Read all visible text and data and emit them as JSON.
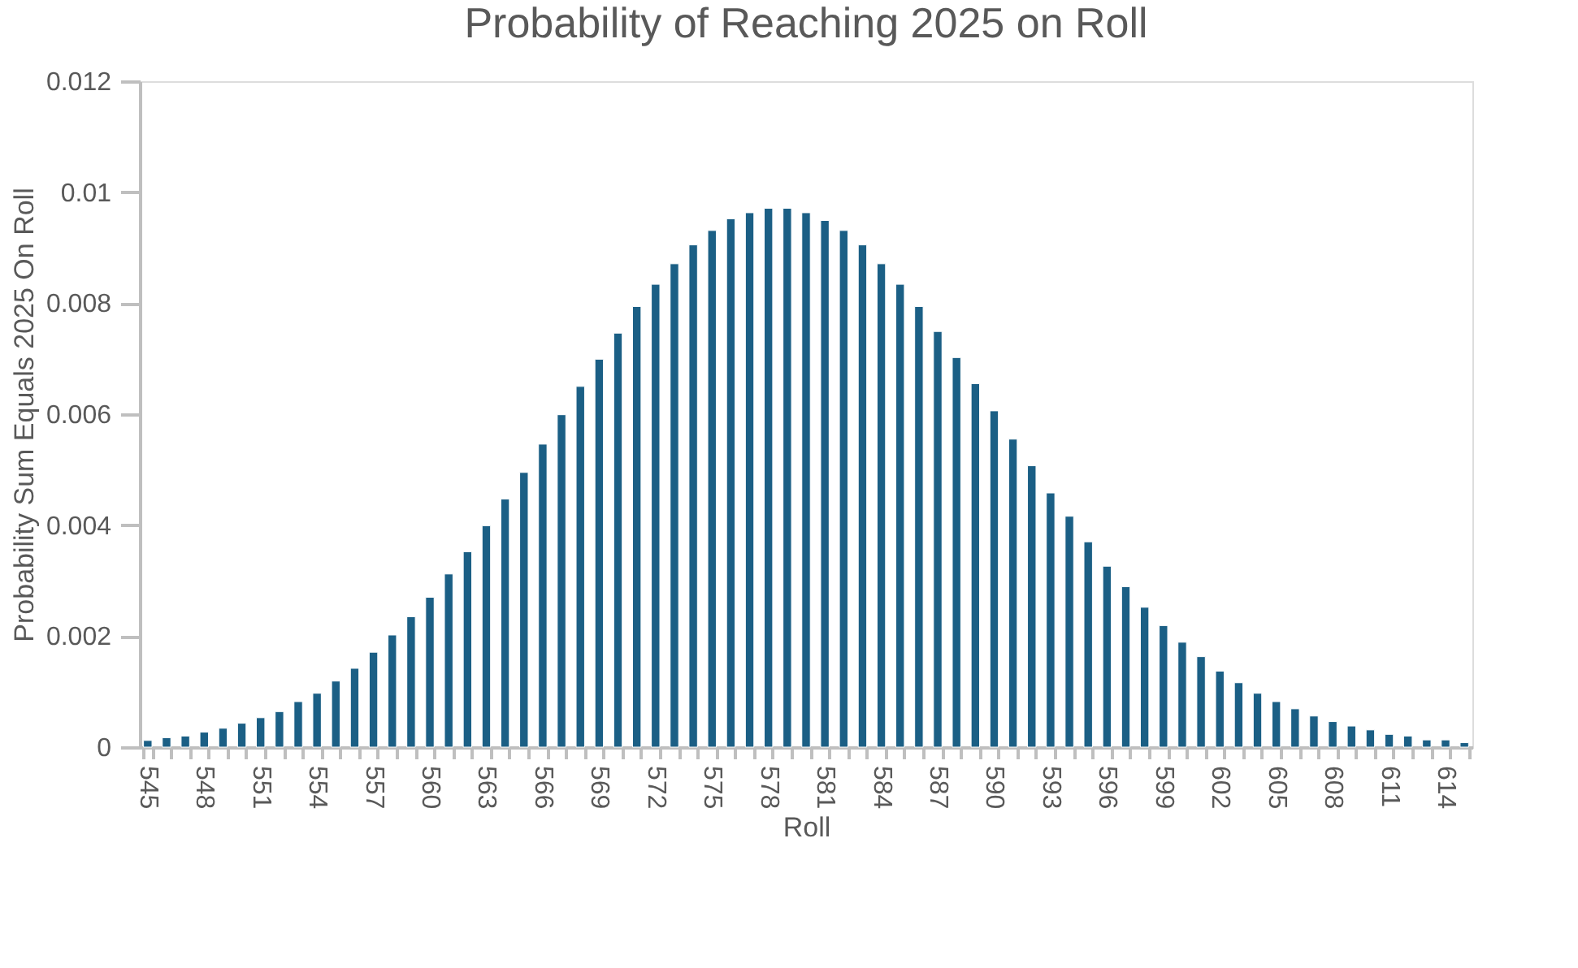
{
  "chart_data": {
    "type": "bar",
    "title": "Probability of Reaching 2025 on Roll",
    "xlabel": "Roll",
    "ylabel": "Probability Sum Equals 2025 On Roll",
    "categories": [
      "545",
      null,
      null,
      "548",
      null,
      null,
      "551",
      null,
      null,
      "554",
      null,
      null,
      "557",
      null,
      null,
      "560",
      null,
      null,
      "563",
      null,
      null,
      "566",
      null,
      null,
      "569",
      null,
      null,
      "572",
      null,
      null,
      "575",
      null,
      null,
      "578",
      null,
      null,
      "581",
      null,
      null,
      "584",
      null,
      null,
      "587",
      null,
      null,
      "590",
      null,
      null,
      "593",
      null,
      null,
      "596",
      null,
      null,
      "599",
      null,
      null,
      "602",
      null,
      null,
      "605",
      null,
      null,
      "608",
      null,
      null,
      "611",
      null,
      null,
      "614",
      null
    ],
    "values": [
      0.00012,
      0.00017,
      0.0002,
      0.00027,
      0.00034,
      0.00043,
      0.00053,
      0.00064,
      0.00082,
      0.00097,
      0.00119,
      0.00142,
      0.00171,
      0.00202,
      0.00235,
      0.0027,
      0.00312,
      0.00352,
      0.00399,
      0.00447,
      0.00495,
      0.00546,
      0.00599,
      0.0065,
      0.00699,
      0.00746,
      0.00794,
      0.00834,
      0.00871,
      0.00905,
      0.00931,
      0.00952,
      0.00963,
      0.00971,
      0.00971,
      0.00963,
      0.00949,
      0.00931,
      0.00905,
      0.00871,
      0.00834,
      0.00794,
      0.00749,
      0.00702,
      0.00655,
      0.00606,
      0.00555,
      0.00507,
      0.00458,
      0.00416,
      0.0037,
      0.00326,
      0.00289,
      0.00252,
      0.00219,
      0.00189,
      0.00163,
      0.00137,
      0.00116,
      0.00097,
      0.00082,
      0.00069,
      0.00056,
      0.00046,
      0.00038,
      0.00031,
      0.00023,
      0.0002,
      0.00013,
      0.00013,
      8e-05
    ],
    "color": "#1b5f85",
    "ylim": [
      0,
      0.012
    ],
    "yticks": [
      0,
      0.002,
      0.004,
      0.006,
      0.008,
      0.01,
      0.012
    ],
    "grid": false
  }
}
